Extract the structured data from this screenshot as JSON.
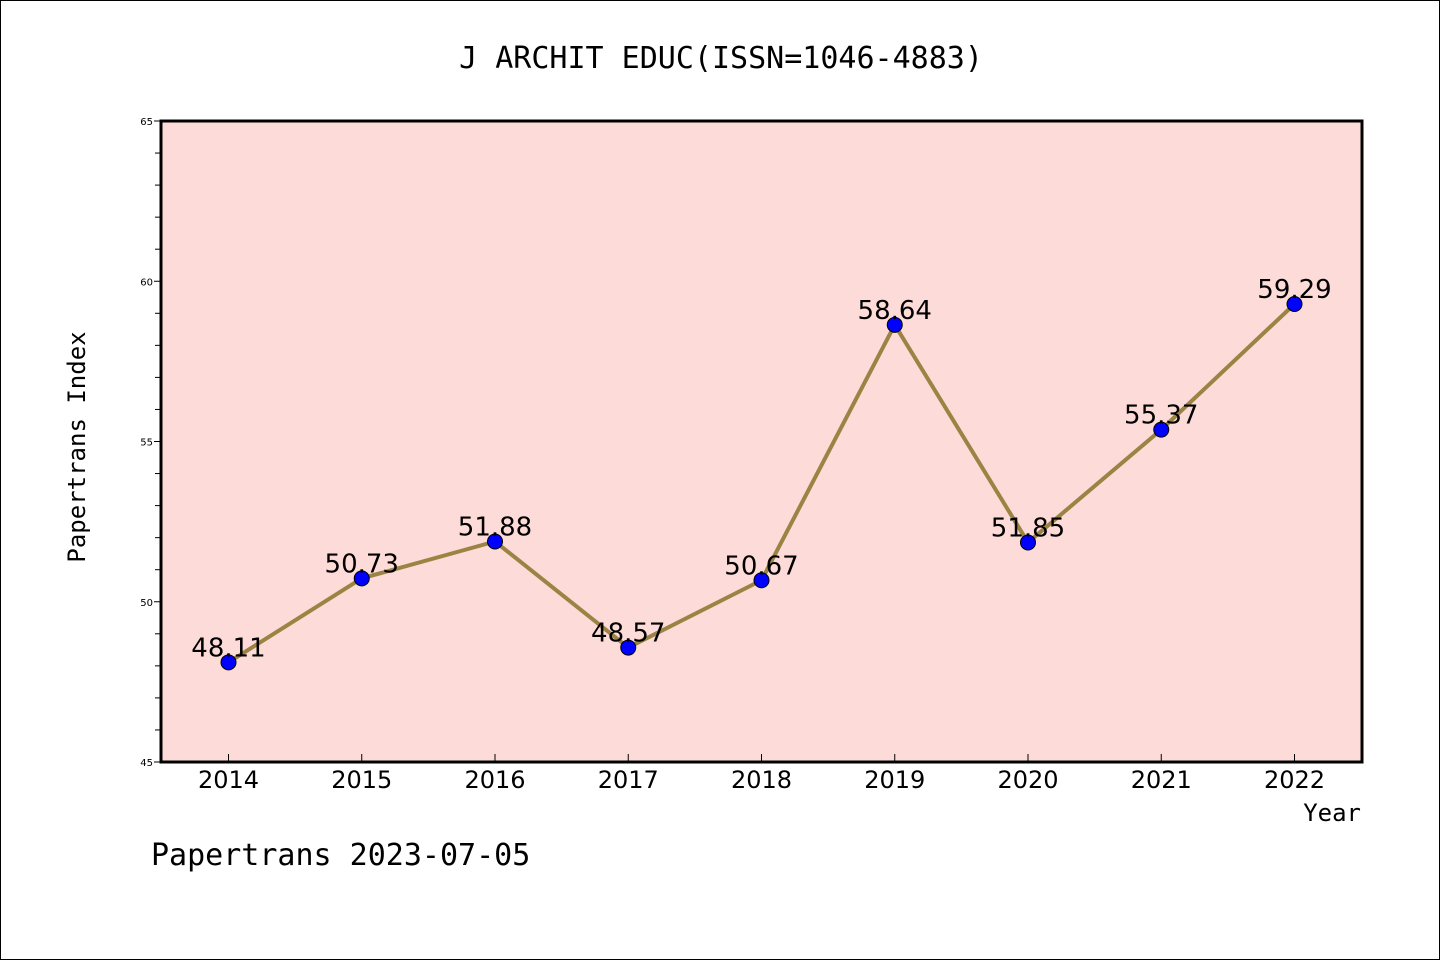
{
  "chart_data": {
    "type": "line",
    "title": "J ARCHIT EDUC(ISSN=1046-4883)",
    "xlabel": "Year",
    "ylabel": "Papertrans Index",
    "categories": [
      "2014",
      "2015",
      "2016",
      "2017",
      "2018",
      "2019",
      "2020",
      "2021",
      "2022"
    ],
    "series": [
      {
        "values": [
          48.11,
          50.73,
          51.88,
          48.57,
          50.67,
          58.64,
          51.85,
          55.37,
          59.29
        ],
        "labels": [
          "48.11",
          "50.73",
          "51.88",
          "48.57",
          "50.67",
          "58.64",
          "51.85",
          "55.37",
          "59.29"
        ]
      }
    ],
    "ylim": [
      45,
      65
    ],
    "yticks": [
      "45",
      "50",
      "55",
      "60",
      "65"
    ],
    "ytick_values": [
      45,
      50,
      55,
      60,
      65
    ],
    "grid": false,
    "colors": {
      "plot_background": "#fddbd9",
      "line": "#9b8343",
      "marker": "#0000ff"
    }
  },
  "footer": "Papertrans 2023-07-05"
}
